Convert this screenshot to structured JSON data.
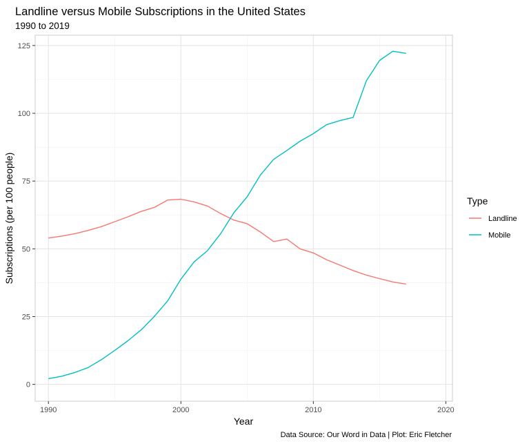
{
  "chart_data": {
    "type": "line",
    "title": "Landline versus Mobile Subscriptions in the United States",
    "subtitle": "1990 to 2019",
    "xlabel": "Year",
    "ylabel": "Subscriptions (per 100 people)",
    "caption": "Data Source: Our Word in Data | Plot: Eric Fletcher",
    "xlim": [
      1989,
      2020.5
    ],
    "ylim": [
      -6.2,
      128.8
    ],
    "x_ticks": [
      1990,
      2000,
      2010,
      2020
    ],
    "y_ticks": [
      0,
      25,
      50,
      75,
      100,
      125
    ],
    "grid": true,
    "legend": {
      "title": "Type",
      "position": "right"
    },
    "x": [
      1990,
      1991,
      1992,
      1993,
      1994,
      1995,
      1996,
      1997,
      1998,
      1999,
      2000,
      2001,
      2002,
      2003,
      2004,
      2005,
      2006,
      2007,
      2008,
      2009,
      2010,
      2011,
      2012,
      2013,
      2014,
      2015,
      2016,
      2017
    ],
    "series": [
      {
        "name": "Landline",
        "color": "#F8766D",
        "values": [
          54.0,
          54.7,
          55.6,
          56.8,
          58.2,
          60.0,
          61.8,
          63.8,
          65.3,
          68.0,
          68.3,
          67.3,
          65.8,
          63.0,
          60.6,
          59.3,
          56.2,
          52.7,
          53.6,
          50.0,
          48.5,
          46.0,
          44.0,
          42.0,
          40.3,
          39.0,
          37.8,
          37.0
        ]
      },
      {
        "name": "Mobile",
        "color": "#00BFC4",
        "values": [
          2.1,
          3.0,
          4.4,
          6.2,
          9.1,
          12.5,
          16.1,
          20.1,
          25.1,
          30.8,
          38.8,
          45.2,
          49.3,
          55.6,
          63.3,
          69.2,
          77.2,
          83.0,
          86.3,
          89.7,
          92.5,
          95.8,
          97.3,
          98.5,
          112.0,
          119.5,
          122.9,
          122.1
        ]
      }
    ]
  }
}
